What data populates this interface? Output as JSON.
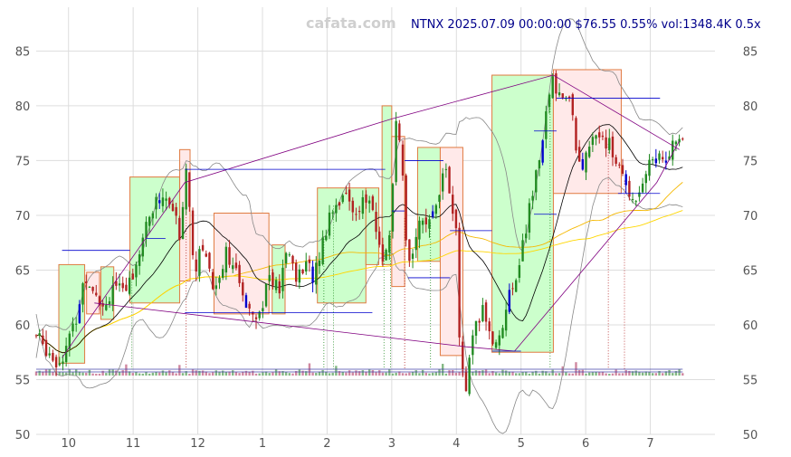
{
  "watermark": "cafata.com",
  "headline": "NTNX 2025.07.09 00:00:00 $76.55 0.55% vol:1348.4K 0.5x",
  "colors": {
    "up": "#228b22",
    "down": "#b22222",
    "grid": "#dddddd",
    "ma_short": "#000000",
    "ma_mid": "#f5b800",
    "ma_long": "#ffd700",
    "band": "#888888",
    "trend": "#800080",
    "level": "#0000cd",
    "box_up_fill": "#ccffcc",
    "box_down_fill": "#ffe9e9",
    "box_border": "#e07a40"
  },
  "chart_data": {
    "type": "candlestick",
    "ylim": [
      50,
      89
    ],
    "y_ticks": [
      50,
      55,
      60,
      65,
      70,
      75,
      80,
      85
    ],
    "x_range_months": [
      0,
      10.5
    ],
    "x_ticks": [
      {
        "label": "10",
        "pos": 0.5
      },
      {
        "label": "11",
        "pos": 1.5
      },
      {
        "label": "12",
        "pos": 2.5
      },
      {
        "label": "1",
        "pos": 3.5
      },
      {
        "label": "2",
        "pos": 4.5
      },
      {
        "label": "3",
        "pos": 5.5
      },
      {
        "label": "4",
        "pos": 6.5
      },
      {
        "label": "5",
        "pos": 7.5
      },
      {
        "label": "6",
        "pos": 8.5
      },
      {
        "label": "7",
        "pos": 9.5
      }
    ],
    "price_path": [
      [
        0.0,
        59.0
      ],
      [
        0.35,
        56.5
      ],
      [
        0.6,
        60.0
      ],
      [
        0.75,
        64.5
      ],
      [
        0.9,
        63.5
      ],
      [
        1.05,
        61.5
      ],
      [
        1.2,
        64.0
      ],
      [
        1.35,
        62.5
      ],
      [
        1.5,
        65.0
      ],
      [
        1.75,
        70.0
      ],
      [
        1.95,
        72.0
      ],
      [
        2.15,
        70.0
      ],
      [
        2.25,
        67.0
      ],
      [
        2.3,
        76.0
      ],
      [
        2.45,
        65.0
      ],
      [
        2.6,
        67.5
      ],
      [
        2.75,
        63.0
      ],
      [
        2.95,
        67.0
      ],
      [
        3.2,
        62.5
      ],
      [
        3.45,
        61.0
      ],
      [
        3.6,
        64.5
      ],
      [
        3.75,
        63.0
      ],
      [
        3.9,
        67.0
      ],
      [
        4.05,
        64.0
      ],
      [
        4.15,
        65.5
      ],
      [
        4.3,
        64.5
      ],
      [
        4.55,
        70.5
      ],
      [
        4.75,
        72.0
      ],
      [
        4.9,
        70.5
      ],
      [
        5.15,
        71.5
      ],
      [
        5.35,
        66.0
      ],
      [
        5.5,
        69.0
      ],
      [
        5.55,
        79.0
      ],
      [
        5.65,
        75.0
      ],
      [
        5.75,
        64.5
      ],
      [
        5.85,
        68.0
      ],
      [
        5.95,
        70.5
      ],
      [
        6.05,
        68.0
      ],
      [
        6.2,
        72.0
      ],
      [
        6.35,
        74.5
      ],
      [
        6.45,
        69.5
      ],
      [
        6.5,
        68.0
      ],
      [
        6.55,
        58.0
      ],
      [
        6.65,
        54.0
      ],
      [
        6.75,
        58.5
      ],
      [
        6.9,
        61.5
      ],
      [
        7.1,
        58.0
      ],
      [
        7.3,
        62.0
      ],
      [
        7.5,
        66.5
      ],
      [
        7.7,
        72.5
      ],
      [
        7.85,
        78.0
      ],
      [
        8.0,
        82.5
      ],
      [
        8.1,
        81.0
      ],
      [
        8.25,
        80.5
      ],
      [
        8.4,
        74.5
      ],
      [
        8.55,
        75.5
      ],
      [
        8.7,
        78.0
      ],
      [
        8.85,
        76.5
      ],
      [
        9.0,
        74.5
      ],
      [
        9.15,
        72.5
      ],
      [
        9.25,
        71.5
      ],
      [
        9.4,
        73.5
      ],
      [
        9.55,
        75.5
      ],
      [
        9.7,
        75.0
      ],
      [
        9.85,
        76.5
      ],
      [
        10.0,
        76.5
      ]
    ],
    "boxes": [
      {
        "x0": 0.35,
        "x1": 0.75,
        "y0": 56.5,
        "y1": 65.5,
        "kind": "up"
      },
      {
        "x0": 0.78,
        "x1": 0.98,
        "y0": 61.0,
        "y1": 64.8,
        "kind": "down"
      },
      {
        "x0": 1.0,
        "x1": 1.2,
        "y0": 60.5,
        "y1": 65.3,
        "kind": "up"
      },
      {
        "x0": 1.45,
        "x1": 2.22,
        "y0": 62.0,
        "y1": 73.5,
        "kind": "up"
      },
      {
        "x0": 2.22,
        "x1": 2.38,
        "y0": 64.0,
        "y1": 76.0,
        "kind": "down"
      },
      {
        "x0": 2.75,
        "x1": 3.6,
        "y0": 61.0,
        "y1": 70.2,
        "kind": "down"
      },
      {
        "x0": 3.65,
        "x1": 3.85,
        "y0": 61.0,
        "y1": 67.3,
        "kind": "up"
      },
      {
        "x0": 4.35,
        "x1": 5.1,
        "y0": 62.0,
        "y1": 72.5,
        "kind": "up"
      },
      {
        "x0": 5.1,
        "x1": 5.3,
        "y0": 65.5,
        "y1": 72.5,
        "kind": "up"
      },
      {
        "x0": 5.35,
        "x1": 5.5,
        "y0": 65.5,
        "y1": 80.0,
        "kind": "up"
      },
      {
        "x0": 5.5,
        "x1": 5.7,
        "y0": 63.5,
        "y1": 77.2,
        "kind": "down"
      },
      {
        "x0": 5.9,
        "x1": 6.25,
        "y0": 65.8,
        "y1": 76.2,
        "kind": "up"
      },
      {
        "x0": 6.25,
        "x1": 6.6,
        "y0": 57.2,
        "y1": 76.2,
        "kind": "down"
      },
      {
        "x0": 7.05,
        "x1": 8.0,
        "y0": 57.5,
        "y1": 82.8,
        "kind": "up"
      },
      {
        "x0": 8.0,
        "x1": 9.05,
        "y0": 72.0,
        "y1": 83.3,
        "kind": "down"
      }
    ],
    "levels": [
      {
        "x0": 0.4,
        "x1": 1.45,
        "y": 66.8
      },
      {
        "x0": 2.3,
        "x1": 5.4,
        "y": 74.2
      },
      {
        "x0": 2.3,
        "x1": 5.2,
        "y": 61.1
      },
      {
        "x0": 5.5,
        "x1": 5.7,
        "y": 70.4
      },
      {
        "x0": 5.7,
        "x1": 6.3,
        "y": 75.0
      },
      {
        "x0": 5.75,
        "x1": 6.4,
        "y": 64.3
      },
      {
        "x0": 6.4,
        "x1": 7.05,
        "y": 68.6
      },
      {
        "x0": 7.05,
        "x1": 7.5,
        "y": 57.6
      },
      {
        "x0": 7.7,
        "x1": 8.05,
        "y": 77.7
      },
      {
        "x0": 7.7,
        "x1": 8.05,
        "y": 70.1
      },
      {
        "x0": 8.05,
        "x1": 9.65,
        "y": 80.7
      },
      {
        "x0": 9.0,
        "x1": 9.65,
        "y": 72.0
      },
      {
        "x0": 1.7,
        "x1": 2.0,
        "y": 67.9
      }
    ],
    "trend_lines": [
      [
        [
          0.4,
          57.0
        ],
        [
          2.3,
          73.0
        ],
        [
          5.5,
          78.8
        ],
        [
          8.0,
          82.8
        ],
        [
          9.95,
          76.0
        ]
      ],
      [
        [
          0.9,
          62.0
        ],
        [
          6.65,
          58.0
        ],
        [
          7.4,
          57.6
        ],
        [
          9.6,
          73.0
        ],
        [
          9.95,
          76.8
        ]
      ]
    ],
    "markers": [
      {
        "x": 1.48,
        "kind": "up"
      },
      {
        "x": 2.32,
        "kind": "down"
      },
      {
        "x": 4.45,
        "kind": "up"
      },
      {
        "x": 4.6,
        "kind": "up"
      },
      {
        "x": 5.38,
        "kind": "up"
      },
      {
        "x": 5.48,
        "kind": "up"
      },
      {
        "x": 5.7,
        "kind": "down"
      },
      {
        "x": 6.1,
        "kind": "up"
      },
      {
        "x": 6.6,
        "kind": "down"
      },
      {
        "x": 7.95,
        "kind": "up"
      },
      {
        "x": 8.85,
        "kind": "down"
      },
      {
        "x": 9.1,
        "kind": "down"
      }
    ]
  }
}
